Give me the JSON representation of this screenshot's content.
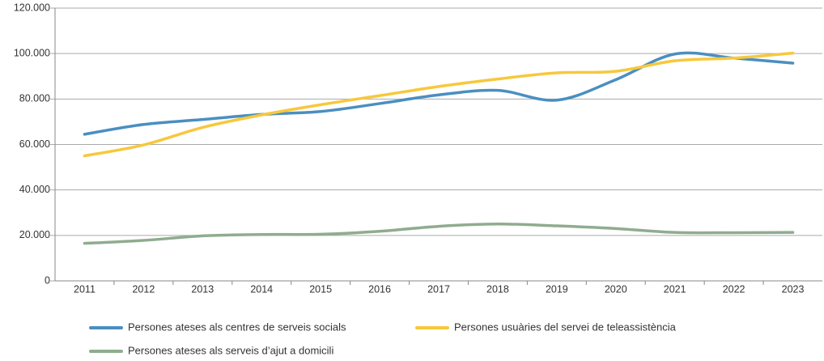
{
  "chart_data": {
    "type": "line",
    "categories": [
      "2011",
      "2012",
      "2013",
      "2014",
      "2015",
      "2016",
      "2017",
      "2018",
      "2019",
      "2020",
      "2021",
      "2022",
      "2023"
    ],
    "series": [
      {
        "name": "Persones ateses als centres de serveis socials",
        "color": "#4a8fc0",
        "values": [
          64500,
          68800,
          71000,
          73200,
          74500,
          78000,
          81800,
          83800,
          79500,
          88500,
          99800,
          98000,
          95800
        ]
      },
      {
        "name": "Persones usuàries del servei de teleassistència",
        "color": "#f7c83c",
        "values": [
          55000,
          59800,
          67500,
          73000,
          77500,
          81500,
          85500,
          88800,
          91500,
          92200,
          96800,
          98000,
          100200
        ]
      },
      {
        "name": "Persones ateses als serveis d’ajut a domicili",
        "color": "#8fac8f",
        "values": [
          16500,
          17800,
          19800,
          20400,
          20500,
          21800,
          24000,
          25000,
          24200,
          23000,
          21300,
          21200,
          21300
        ]
      }
    ],
    "ylim": [
      0,
      120000
    ],
    "yticks": [
      0,
      {
        "value": 20000,
        "label": "20.000"
      },
      {
        "value": 40000,
        "label": "40.000"
      },
      {
        "value": 60000,
        "label": "60.000"
      },
      {
        "value": 80000,
        "label": "80.000"
      },
      {
        "value": 100000,
        "label": "100.000"
      },
      {
        "value": 120000,
        "label": "120.000"
      }
    ],
    "grid": true
  }
}
